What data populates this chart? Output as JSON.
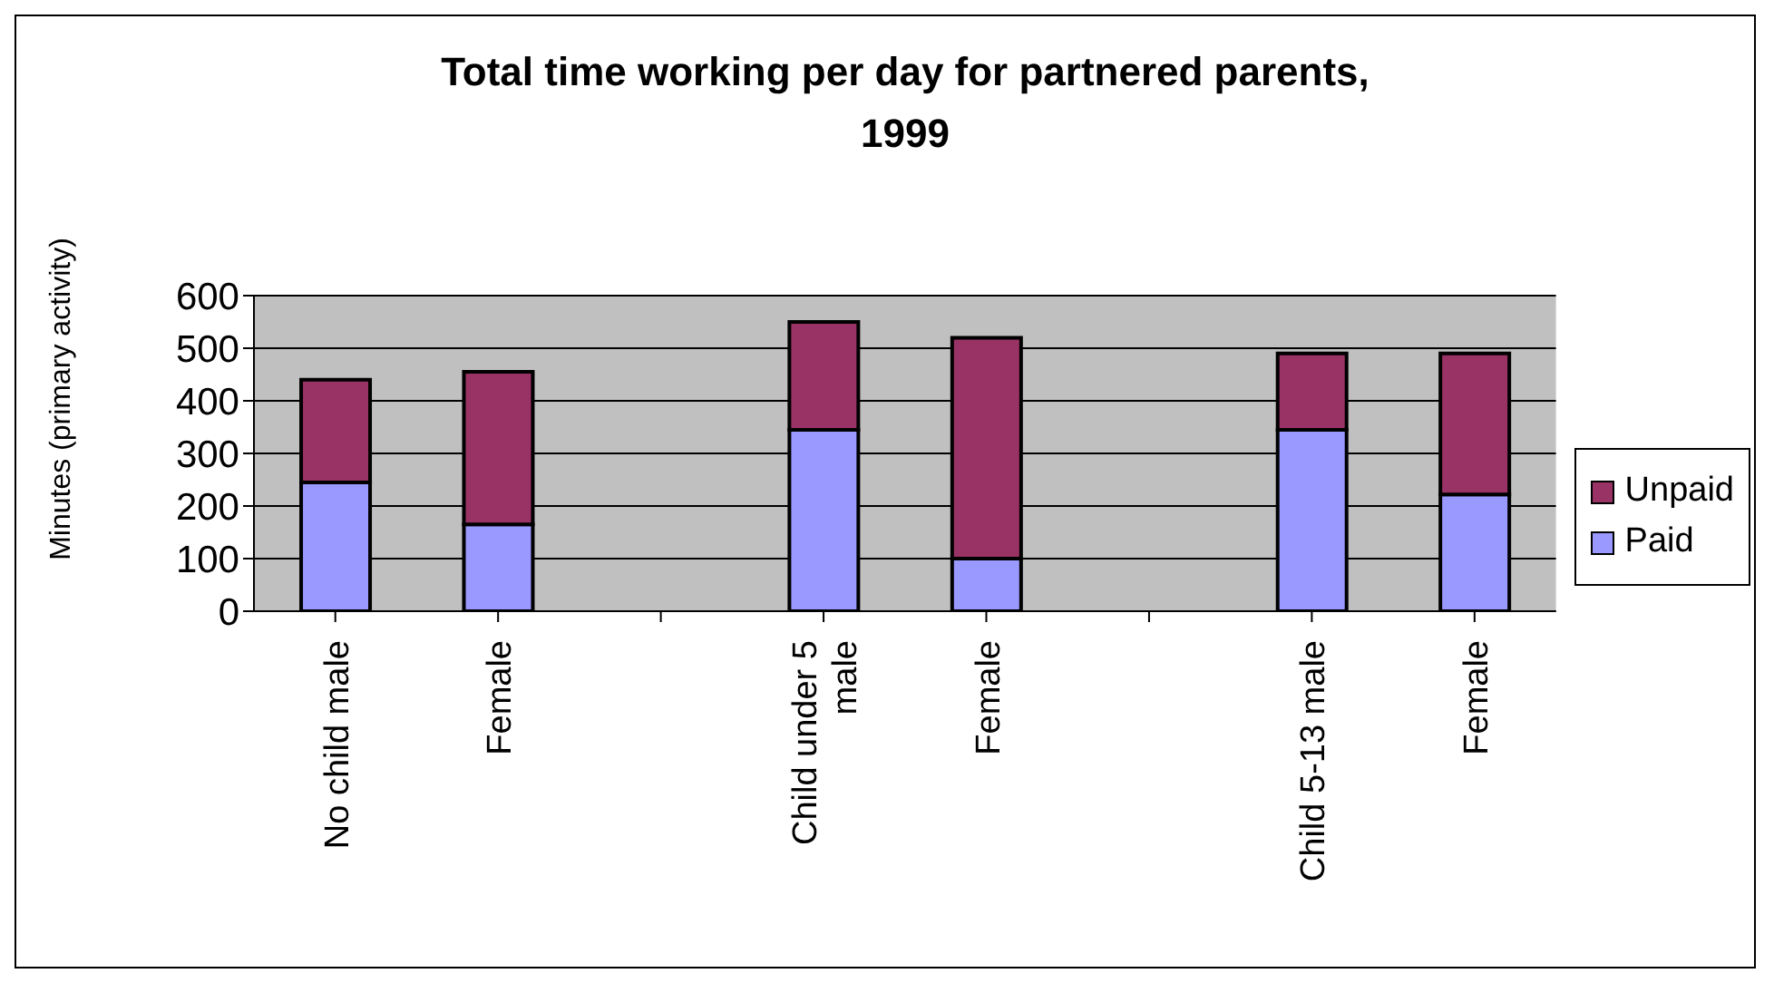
{
  "chart_data": {
    "type": "bar",
    "title": "Total time working per day for partnered parents, 1999",
    "ylabel": "Minutes (primary activity)",
    "categories": [
      "No child male",
      "Female",
      null,
      "Child under 5 male",
      "Female",
      null,
      "Child 5-13 male",
      "Female"
    ],
    "series": [
      {
        "name": "Paid",
        "color": "#9999ff",
        "values": [
          245,
          165,
          null,
          345,
          100,
          null,
          345,
          222
        ]
      },
      {
        "name": "Unpaid",
        "color": "#993366",
        "values": [
          195,
          290,
          null,
          205,
          420,
          null,
          145,
          268
        ]
      }
    ],
    "stacked": true,
    "ylim": [
      0,
      600
    ],
    "yticks": [
      0,
      100,
      200,
      300,
      400,
      500,
      600
    ],
    "grid": "y",
    "legend": "right"
  }
}
